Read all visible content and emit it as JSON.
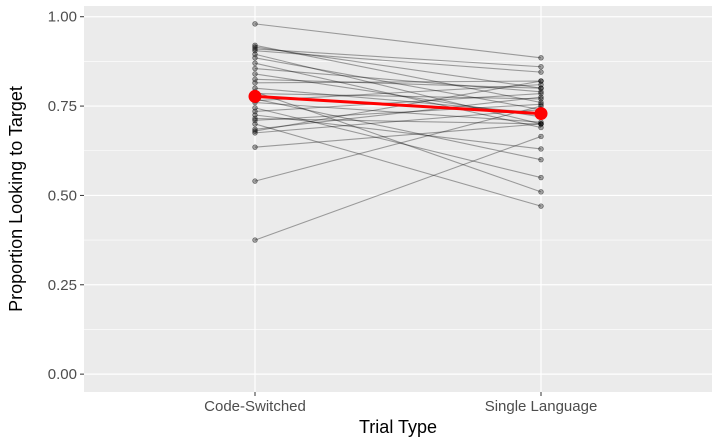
{
  "chart_data": {
    "type": "line",
    "xlabel": "Trial Type",
    "ylabel": "Proportion Looking to Target",
    "categories": [
      "Code-Switched",
      "Single Language"
    ],
    "ylim": [
      -0.05,
      1.03
    ],
    "y_ticks": [
      0.0,
      0.25,
      0.5,
      0.75,
      1.0
    ],
    "y_tick_labels": [
      "0.00",
      "0.25",
      "0.50",
      "0.75",
      "1.00"
    ],
    "grid": true,
    "participants": [
      [
        0.98,
        0.885
      ],
      [
        0.92,
        0.76
      ],
      [
        0.915,
        0.8
      ],
      [
        0.91,
        0.86
      ],
      [
        0.905,
        0.845
      ],
      [
        0.895,
        0.7
      ],
      [
        0.885,
        0.74
      ],
      [
        0.87,
        0.69
      ],
      [
        0.855,
        0.79
      ],
      [
        0.84,
        0.72
      ],
      [
        0.825,
        0.8
      ],
      [
        0.815,
        0.82
      ],
      [
        0.8,
        0.73
      ],
      [
        0.79,
        0.51
      ],
      [
        0.785,
        0.77
      ],
      [
        0.77,
        0.6
      ],
      [
        0.765,
        0.81
      ],
      [
        0.76,
        0.705
      ],
      [
        0.745,
        0.55
      ],
      [
        0.735,
        0.785
      ],
      [
        0.725,
        0.63
      ],
      [
        0.715,
        0.7
      ],
      [
        0.71,
        0.755
      ],
      [
        0.7,
        0.47
      ],
      [
        0.685,
        0.775
      ],
      [
        0.68,
        0.82
      ],
      [
        0.675,
        0.74
      ],
      [
        0.635,
        0.7
      ],
      [
        0.54,
        0.75
      ],
      [
        0.375,
        0.665
      ]
    ],
    "mean": [
      0.777,
      0.729
    ],
    "colors": {
      "panel": "#ebebeb",
      "grid": "#ffffff",
      "participant_line": "#000000",
      "mean": "#ff0000"
    }
  }
}
